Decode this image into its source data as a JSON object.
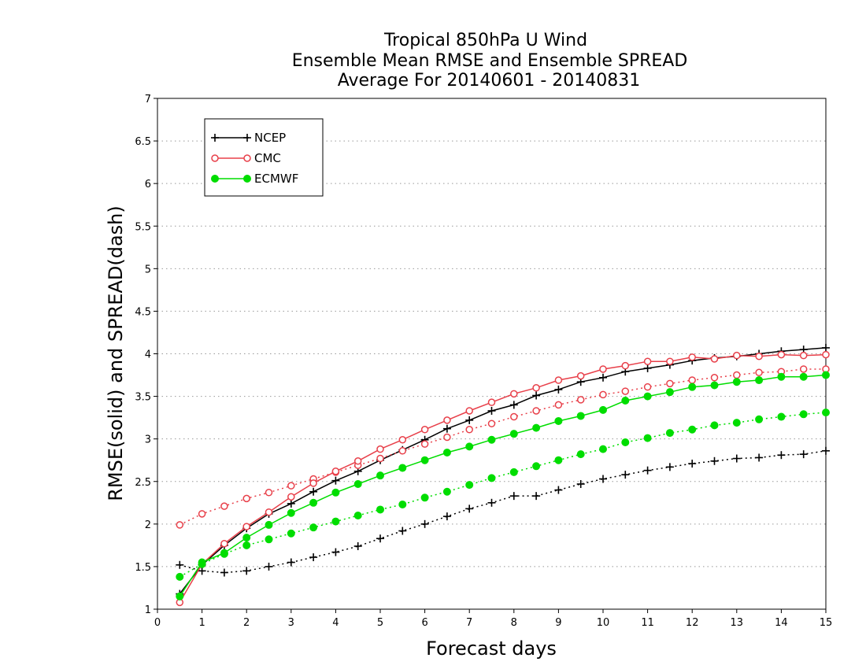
{
  "chart_data": {
    "type": "line",
    "title_lines": [
      "Tropical 850hPa U Wind",
      "Ensemble Mean RMSE and Ensemble SPREAD",
      "Average For 20140601 - 20140831"
    ],
    "xlabel": "Forecast days",
    "ylabel": "RMSE(solid) and SPREAD(dash)",
    "xlim": [
      0,
      15
    ],
    "ylim": [
      1,
      7
    ],
    "xticks": [
      "0",
      "1",
      "2",
      "3",
      "4",
      "5",
      "6",
      "7",
      "8",
      "9",
      "10",
      "11",
      "12",
      "13",
      "14",
      "15"
    ],
    "yticks": [
      "1",
      "1.5",
      "2",
      "2.5",
      "3",
      "3.5",
      "4",
      "4.5",
      "5",
      "5.5",
      "6",
      "6.5",
      "7"
    ],
    "grid": true,
    "legend_position": "top-left",
    "x": [
      0.5,
      1,
      1.5,
      2,
      2.5,
      3,
      3.5,
      4,
      4.5,
      5,
      5.5,
      6,
      6.5,
      7,
      7.5,
      8,
      8.5,
      9,
      9.5,
      10,
      10.5,
      11,
      11.5,
      12,
      12.5,
      13,
      13.5,
      14,
      14.5,
      15
    ],
    "series": [
      {
        "name": "NCEP",
        "color": "#000000",
        "marker": "plus",
        "rmse": [
          1.18,
          1.52,
          1.75,
          1.95,
          2.12,
          2.24,
          2.38,
          2.51,
          2.62,
          2.75,
          2.87,
          2.99,
          3.12,
          3.22,
          3.33,
          3.4,
          3.51,
          3.58,
          3.67,
          3.72,
          3.79,
          3.83,
          3.87,
          3.92,
          3.95,
          3.97,
          4.0,
          4.03,
          4.05,
          4.07
        ],
        "spread": [
          1.52,
          1.45,
          1.43,
          1.45,
          1.5,
          1.55,
          1.61,
          1.67,
          1.74,
          1.83,
          1.92,
          2.0,
          2.09,
          2.18,
          2.25,
          2.33,
          2.33,
          2.4,
          2.47,
          2.53,
          2.58,
          2.63,
          2.67,
          2.71,
          2.74,
          2.77,
          2.78,
          2.81,
          2.82,
          2.86
        ]
      },
      {
        "name": "CMC",
        "color": "#e8404a",
        "marker": "open-circle",
        "rmse": [
          1.08,
          1.53,
          1.77,
          1.97,
          2.14,
          2.32,
          2.48,
          2.62,
          2.74,
          2.88,
          2.99,
          3.11,
          3.22,
          3.33,
          3.43,
          3.53,
          3.6,
          3.69,
          3.74,
          3.82,
          3.86,
          3.91,
          3.91,
          3.96,
          3.94,
          3.98,
          3.97,
          3.99,
          3.98,
          3.99
        ],
        "spread": [
          1.99,
          2.12,
          2.21,
          2.3,
          2.37,
          2.45,
          2.53,
          2.61,
          2.69,
          2.77,
          2.86,
          2.94,
          3.02,
          3.11,
          3.18,
          3.26,
          3.33,
          3.4,
          3.46,
          3.52,
          3.56,
          3.61,
          3.65,
          3.69,
          3.72,
          3.75,
          3.78,
          3.79,
          3.82,
          3.82
        ]
      },
      {
        "name": "ECMWF",
        "color": "#00dd00",
        "marker": "filled-circle",
        "rmse": [
          1.15,
          1.55,
          1.66,
          1.84,
          1.99,
          2.13,
          2.25,
          2.37,
          2.47,
          2.57,
          2.66,
          2.75,
          2.84,
          2.91,
          2.99,
          3.06,
          3.13,
          3.21,
          3.27,
          3.34,
          3.45,
          3.5,
          3.55,
          3.61,
          3.63,
          3.67,
          3.69,
          3.73,
          3.73,
          3.75
        ],
        "spread": [
          1.38,
          1.53,
          1.65,
          1.75,
          1.82,
          1.89,
          1.96,
          2.03,
          2.1,
          2.17,
          2.23,
          2.31,
          2.38,
          2.46,
          2.54,
          2.61,
          2.68,
          2.75,
          2.82,
          2.88,
          2.96,
          3.01,
          3.07,
          3.11,
          3.16,
          3.19,
          3.23,
          3.26,
          3.29,
          3.31
        ]
      }
    ]
  }
}
